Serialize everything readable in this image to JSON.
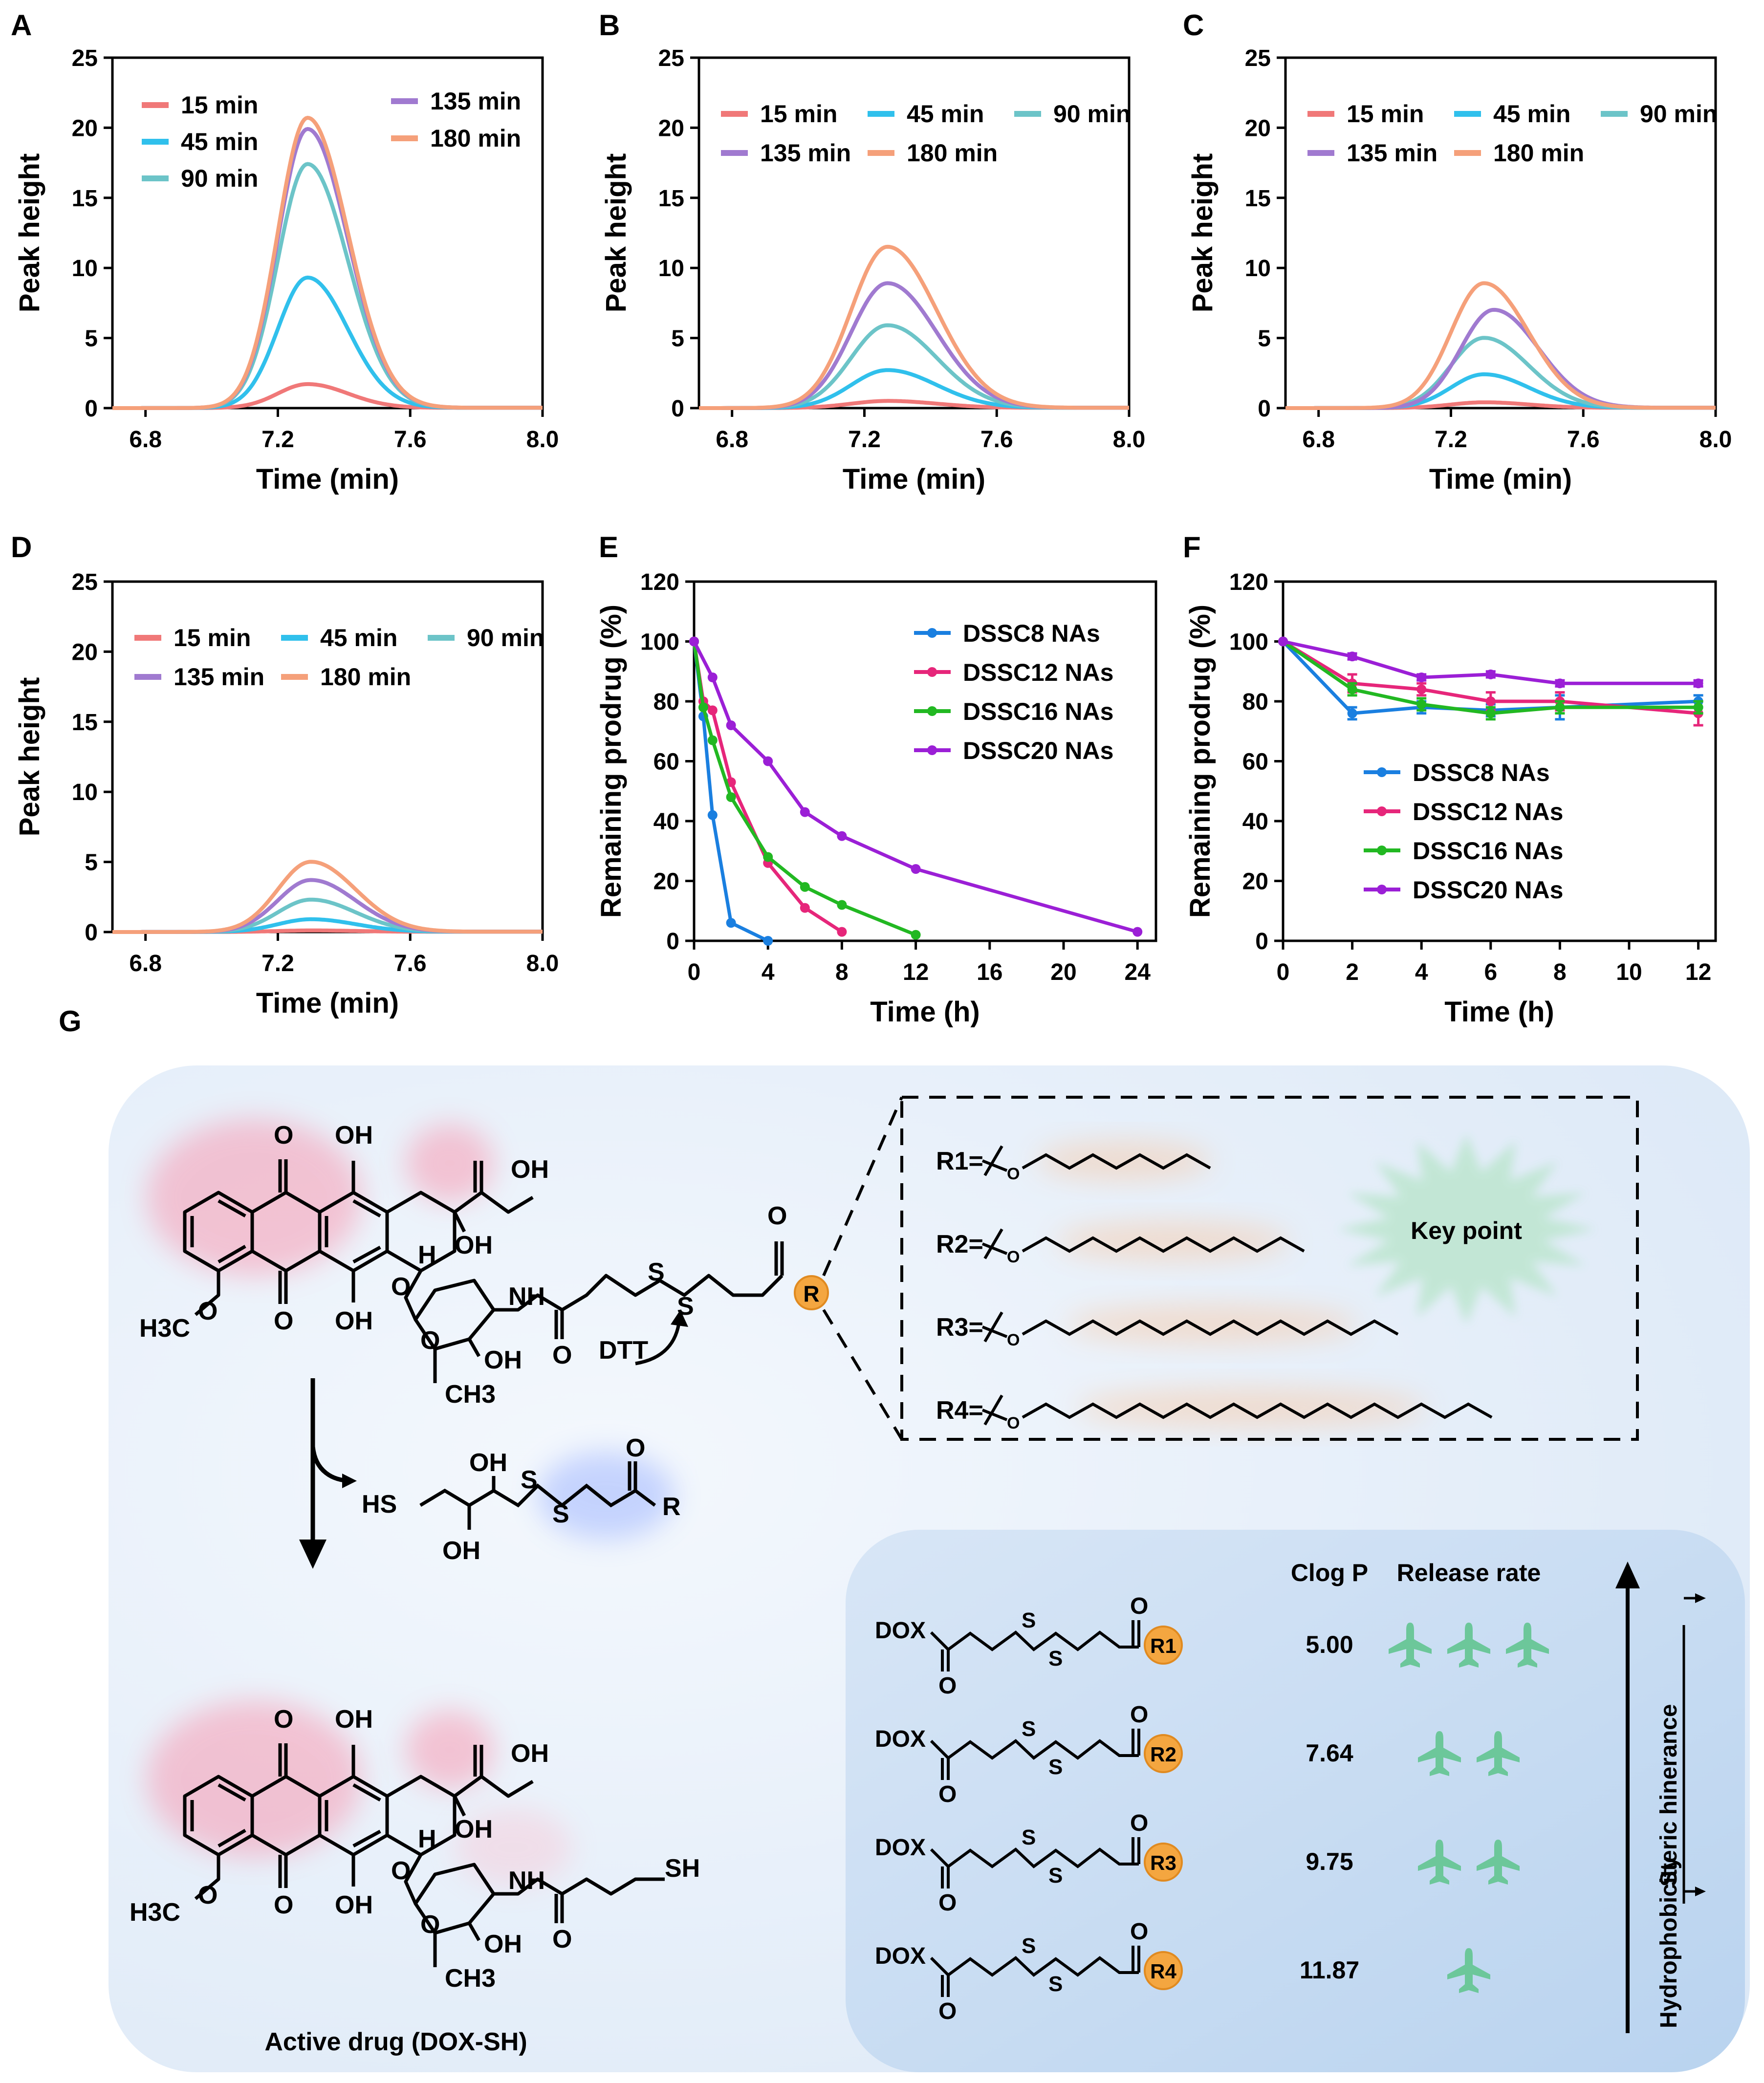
{
  "chart_data": [
    {
      "panel": "A",
      "type": "line",
      "xlabel": "Time (min)",
      "ylabel": "Peak height",
      "xlim": [
        6.7,
        8.0
      ],
      "ylim": [
        0,
        25
      ],
      "xticks": [
        "6.8",
        "7.2",
        "7.6",
        "8.0"
      ],
      "yticks": [
        "0",
        "5",
        "10",
        "15",
        "20",
        "25"
      ],
      "peak_center": 7.29,
      "peak_width": 0.09,
      "legend": {
        "placement": "top",
        "columns": [
          [
            "15 min",
            "45 min",
            "90 min"
          ],
          [
            "135 min",
            "180 min"
          ]
        ]
      },
      "series": [
        {
          "name": "15 min",
          "color": "#f07878",
          "peak": 1.7
        },
        {
          "name": "45 min",
          "color": "#30c0ec",
          "peak": 9.3
        },
        {
          "name": "90 min",
          "color": "#6cc4c8",
          "peak": 17.4
        },
        {
          "name": "135 min",
          "color": "#a07ad0",
          "peak": 19.9
        },
        {
          "name": "180 min",
          "color": "#f5a07a",
          "peak": 20.7
        }
      ]
    },
    {
      "panel": "B",
      "type": "line",
      "xlabel": "Time (min)",
      "ylabel": "Peak height",
      "xlim": [
        6.7,
        8.0
      ],
      "ylim": [
        0,
        25
      ],
      "xticks": [
        "6.8",
        "7.2",
        "7.6",
        "8.0"
      ],
      "yticks": [
        "0",
        "5",
        "10",
        "15",
        "20",
        "25"
      ],
      "peak_center": 7.27,
      "peak_width": 0.11,
      "legend": {
        "placement": "top",
        "rows": [
          [
            "15 min",
            "45 min",
            "90 min"
          ],
          [
            "135 min",
            "180 min"
          ]
        ]
      },
      "series": [
        {
          "name": "15 min",
          "color": "#f07878",
          "peak": 0.5
        },
        {
          "name": "45 min",
          "color": "#30c0ec",
          "peak": 2.7
        },
        {
          "name": "90 min",
          "color": "#6cc4c8",
          "peak": 5.9
        },
        {
          "name": "135 min",
          "color": "#a07ad0",
          "peak": 8.9
        },
        {
          "name": "180 min",
          "color": "#f5a07a",
          "peak": 11.5
        }
      ]
    },
    {
      "panel": "C",
      "type": "line",
      "xlabel": "Time (min)",
      "ylabel": "Peak height",
      "xlim": [
        6.7,
        8.0
      ],
      "ylim": [
        0,
        25
      ],
      "xticks": [
        "6.8",
        "7.2",
        "7.6",
        "8.0"
      ],
      "yticks": [
        "0",
        "5",
        "10",
        "15",
        "20",
        "25"
      ],
      "peak_center": 7.3,
      "peak_width": 0.1,
      "legend": {
        "placement": "top",
        "rows": [
          [
            "15 min",
            "45 min",
            "90 min"
          ],
          [
            "135 min",
            "180 min"
          ]
        ]
      },
      "series": [
        {
          "name": "15 min",
          "color": "#f07878",
          "peak": 0.4
        },
        {
          "name": "45 min",
          "color": "#30c0ec",
          "peak": 2.4
        },
        {
          "name": "90 min",
          "color": "#6cc4c8",
          "peak": 5.0
        },
        {
          "name": "135 min",
          "color": "#a07ad0",
          "peak": 7.0,
          "center": 7.33
        },
        {
          "name": "180 min",
          "color": "#f5a07a",
          "peak": 8.9
        }
      ]
    },
    {
      "panel": "D",
      "type": "line",
      "xlabel": "Time (min)",
      "ylabel": "Peak height",
      "xlim": [
        6.7,
        8.0
      ],
      "ylim": [
        0,
        25
      ],
      "xticks": [
        "6.8",
        "7.2",
        "7.6",
        "8.0"
      ],
      "yticks": [
        "0",
        "5",
        "10",
        "15",
        "20",
        "25"
      ],
      "peak_center": 7.3,
      "peak_width": 0.1,
      "legend": {
        "placement": "top",
        "rows": [
          [
            "15 min",
            "45 min",
            "90 min"
          ],
          [
            "135 min",
            "180 min"
          ]
        ]
      },
      "series": [
        {
          "name": "15 min",
          "color": "#f07878",
          "peak": 0.1
        },
        {
          "name": "45 min",
          "color": "#30c0ec",
          "peak": 0.9
        },
        {
          "name": "90 min",
          "color": "#6cc4c8",
          "peak": 2.3
        },
        {
          "name": "135 min",
          "color": "#a07ad0",
          "peak": 3.7
        },
        {
          "name": "180 min",
          "color": "#f5a07a",
          "peak": 5.0
        }
      ]
    },
    {
      "panel": "E",
      "type": "line",
      "xlabel": "Time (h)",
      "ylabel": "Remaining prodrug (%)",
      "xlim": [
        0,
        25
      ],
      "ylim": [
        0,
        120
      ],
      "xticks": [
        0,
        4,
        8,
        12,
        16,
        20,
        24
      ],
      "yticks": [
        0,
        20,
        40,
        60,
        80,
        100,
        120
      ],
      "legend": {
        "placement": "top-right"
      },
      "series": [
        {
          "name": "DSSC8 NAs",
          "color": "#1a7fe0",
          "x": [
            0,
            0.5,
            1,
            2,
            4
          ],
          "y": [
            100,
            75,
            42,
            6,
            0
          ]
        },
        {
          "name": "DSSC12 NAs",
          "color": "#e6267a",
          "x": [
            0,
            0.5,
            1,
            2,
            4,
            6,
            8
          ],
          "y": [
            100,
            80,
            77,
            53,
            26,
            11,
            3
          ]
        },
        {
          "name": "DSSC16 NAs",
          "color": "#22b822",
          "x": [
            0,
            0.5,
            1,
            2,
            4,
            6,
            8,
            12
          ],
          "y": [
            100,
            78,
            67,
            48,
            28,
            18,
            12,
            2
          ]
        },
        {
          "name": "DSSC20 NAs",
          "color": "#9b1fd6",
          "x": [
            0,
            1,
            2,
            4,
            6,
            8,
            12,
            24
          ],
          "y": [
            100,
            88,
            72,
            60,
            43,
            35,
            24,
            3
          ]
        }
      ]
    },
    {
      "panel": "F",
      "type": "line",
      "xlabel": "Time (h)",
      "ylabel": "Remaining prodrug (%)",
      "xlim": [
        0,
        12.5
      ],
      "ylim": [
        0,
        120
      ],
      "xticks": [
        0,
        2,
        4,
        6,
        8,
        10,
        12
      ],
      "yticks": [
        0,
        20,
        40,
        60,
        80,
        100,
        120
      ],
      "legend": {
        "placement": "bottom-left"
      },
      "series": [
        {
          "name": "DSSC8 NAs",
          "color": "#1a7fe0",
          "x": [
            0,
            2,
            4,
            6,
            8,
            12
          ],
          "y": [
            100,
            76,
            78,
            77,
            78,
            80
          ],
          "err": [
            0,
            2,
            2,
            2,
            4,
            2
          ]
        },
        {
          "name": "DSSC12 NAs",
          "color": "#e6267a",
          "x": [
            0,
            2,
            4,
            6,
            8,
            12
          ],
          "y": [
            100,
            86,
            84,
            80,
            80,
            76
          ],
          "err": [
            0,
            3,
            2,
            3,
            3,
            4
          ]
        },
        {
          "name": "DSSC16 NAs",
          "color": "#22b822",
          "x": [
            0,
            2,
            4,
            6,
            8,
            12
          ],
          "y": [
            100,
            84,
            79,
            76,
            78,
            78
          ],
          "err": [
            0,
            2,
            2,
            2,
            2,
            2
          ]
        },
        {
          "name": "DSSC20 NAs",
          "color": "#9b1fd6",
          "x": [
            0,
            2,
            4,
            6,
            8,
            12
          ],
          "y": [
            100,
            95,
            88,
            89,
            86,
            86
          ],
          "err": [
            0,
            1,
            1,
            1,
            1,
            1
          ]
        }
      ]
    }
  ],
  "panel_g": {
    "panel_label": "G",
    "prodrug": {
      "substituents": [
        "O",
        "OH",
        "O",
        "OH",
        "OH",
        "OH",
        "H",
        "O",
        "H3C",
        "O",
        "NH",
        "O",
        "O",
        "OH",
        "CH3",
        "S",
        "S",
        "O",
        "R"
      ],
      "reagent": "DTT"
    },
    "byproduct": {
      "labels": [
        "HS",
        "OH",
        "OH",
        "S",
        "S",
        "O",
        "R"
      ]
    },
    "active_drug": {
      "caption": "Active drug (DOX-SH)",
      "labels": [
        "O",
        "OH",
        "O",
        "OH",
        "OH",
        "OH",
        "H",
        "O",
        "H3C",
        "O",
        "NH",
        "O",
        "SH",
        "O",
        "OH",
        "CH3"
      ]
    },
    "r_groups": [
      {
        "label": "R1=",
        "o": "O",
        "chain_bonds": 8
      },
      {
        "label": "R2=",
        "o": "O",
        "chain_bonds": 12
      },
      {
        "label": "R3=",
        "o": "O",
        "chain_bonds": 16
      },
      {
        "label": "R4=",
        "o": "O",
        "chain_bonds": 20
      }
    ],
    "key_point": "Key point",
    "table": {
      "header_clogp": "Clog P",
      "header_release": "Release rate",
      "rows": [
        {
          "dox": "DOX",
          "carbonyl_o": "O",
          "ester_o": "O",
          "s1": "S",
          "s2": "S",
          "r": "R1",
          "clogp": "5.00",
          "planes": 3
        },
        {
          "dox": "DOX",
          "carbonyl_o": "O",
          "ester_o": "O",
          "s1": "S",
          "s2": "S",
          "r": "R2",
          "clogp": "7.64",
          "planes": 2
        },
        {
          "dox": "DOX",
          "carbonyl_o": "O",
          "ester_o": "O",
          "s1": "S",
          "s2": "S",
          "r": "R3",
          "clogp": "9.75",
          "planes": 2
        },
        {
          "dox": "DOX",
          "carbonyl_o": "O",
          "ester_o": "O",
          "s1": "S",
          "s2": "S",
          "r": "R4",
          "clogp": "11.87",
          "planes": 1
        }
      ],
      "axis_hydrophobicity": "Hydrophobicity",
      "axis_steric": "Steric hinerance"
    },
    "colors": {
      "panel_bg": "#eaf2fb",
      "table_bg": "#c7ddf3",
      "r_badge": "#f4a640",
      "plane": "#6cc79a",
      "glow_red": "#ff6b8a",
      "glow_blue": "#8da7ff"
    }
  }
}
